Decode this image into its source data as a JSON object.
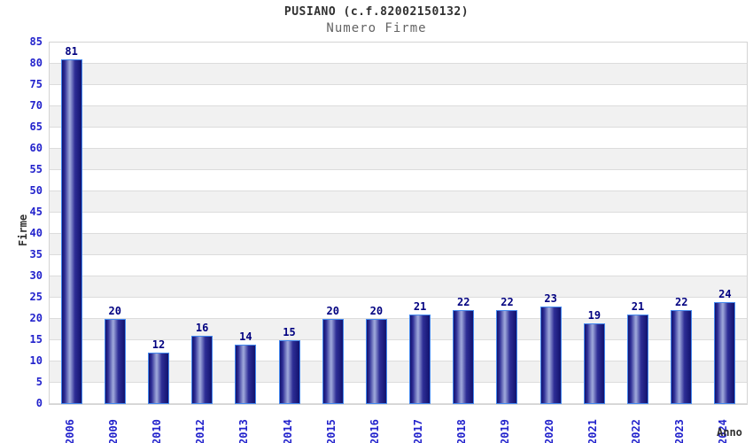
{
  "header": {
    "title": "PUSIANO (c.f.82002150132)",
    "subtitle": "Numero Firme"
  },
  "chart_data": {
    "type": "bar",
    "categories": [
      "2006",
      "2009",
      "2010",
      "2012",
      "2013",
      "2014",
      "2015",
      "2016",
      "2017",
      "2018",
      "2019",
      "2020",
      "2021",
      "2022",
      "2023",
      "2024"
    ],
    "values": [
      81,
      20,
      12,
      16,
      14,
      15,
      20,
      20,
      21,
      22,
      22,
      23,
      19,
      21,
      22,
      24
    ],
    "title": "PUSIANO (c.f.82002150132)",
    "subtitle": "Numero Firme",
    "xlabel": "Anno",
    "ylabel": "Firme",
    "ylim": [
      0,
      85
    ],
    "yticks": [
      0,
      5,
      10,
      15,
      20,
      25,
      30,
      35,
      40,
      45,
      50,
      55,
      60,
      65,
      70,
      75,
      80,
      85
    ],
    "grid": "horizontal gridlines with alternating white/gray bands every 5 units",
    "legend": "none",
    "bar_value_labels_shown": true,
    "x_tick_rotation": "vertical"
  },
  "colors": {
    "title_color": "#303030",
    "subtitle_color": "#646464",
    "tick_label": "#2222cc",
    "value_label": "#000080",
    "bar_border": "#4488ee",
    "bar_dark": "#12126e",
    "bar_light": "#9aa3d8",
    "band_gray": "#f1f1f1",
    "gridline": "#dcdcdc",
    "plot_border": "#d4d4d4"
  }
}
